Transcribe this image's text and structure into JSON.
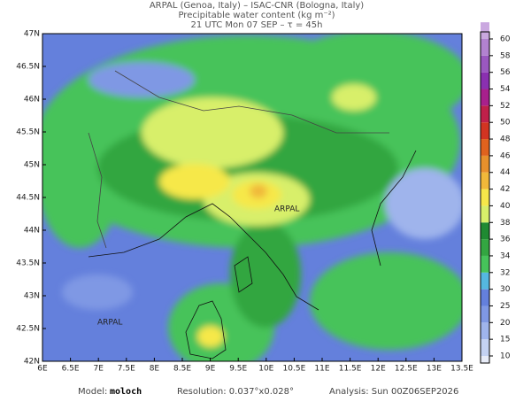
{
  "header": {
    "line1": "ARPAL (Genoa, Italy)  –  ISAC-CNR (Bologna, Italy)",
    "line2": "Precipitable water content (kg m⁻²)",
    "line3": "21 UTC Mon 07 SEP  –  τ = 45h"
  },
  "map": {
    "lat_labels": [
      "47N",
      "46.5N",
      "46N",
      "45.5N",
      "45N",
      "44.5N",
      "44N",
      "43.5N",
      "43N",
      "42.5N",
      "42N"
    ],
    "lon_labels": [
      "6E",
      "6.5E",
      "7E",
      "7.5E",
      "8E",
      "8.5E",
      "9E",
      "9.5E",
      "10E",
      "10.5E",
      "11E",
      "11.5E",
      "12E",
      "12.5E",
      "13E",
      "13.5E"
    ],
    "watermark": "ARPAL"
  },
  "colorbar": {
    "labels": [
      10,
      15,
      20,
      25,
      30,
      32,
      34,
      36,
      38,
      40,
      42,
      44,
      46,
      48,
      50,
      52,
      54,
      56,
      58,
      60
    ],
    "colors": [
      "#e8ecf8",
      "#c4d2f2",
      "#9fb4ec",
      "#7f98e4",
      "#6480dc",
      "#55b8e0",
      "#46c35a",
      "#33a641",
      "#1f8a32",
      "#d8ef6a",
      "#f6e84a",
      "#f0b83a",
      "#e8902c",
      "#e0621e",
      "#d23422",
      "#c0204a",
      "#a8208c",
      "#8a30b0",
      "#9a58c0",
      "#b282d0",
      "#caa8e0",
      "#e2ccf0"
    ]
  },
  "footer": {
    "model_label": "Model:",
    "model_name": "moloch",
    "resolution": "Resolution: 0.037°x0.028°",
    "analysis": "Analysis: Sun 00Z06SEP2026"
  }
}
